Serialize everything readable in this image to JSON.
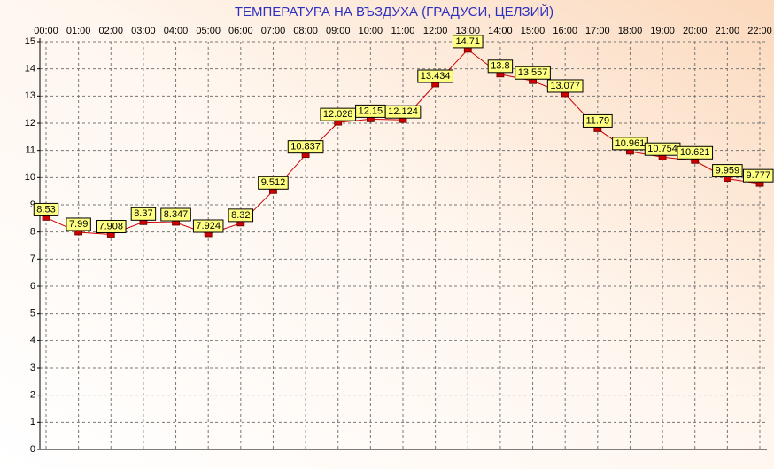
{
  "chart_data": {
    "type": "line",
    "title": "ТЕМПЕРАТУРА НА ВЪЗДУХА  (ГРАДУСИ, ЦЕЛЗИЙ)",
    "categories": [
      "00:00",
      "01:00",
      "02:00",
      "03:00",
      "04:00",
      "05:00",
      "06:00",
      "07:00",
      "08:00",
      "09:00",
      "10:00",
      "11:00",
      "12:00",
      "13:00",
      "14:00",
      "15:00",
      "16:00",
      "17:00",
      "18:00",
      "19:00",
      "20:00",
      "21:00",
      "22:00"
    ],
    "values": [
      8.53,
      7.99,
      7.908,
      8.37,
      8.347,
      7.924,
      8.32,
      9.512,
      10.837,
      12.028,
      12.15,
      12.124,
      13.434,
      14.71,
      13.8,
      13.557,
      13.077,
      11.79,
      10.961,
      10.754,
      10.621,
      9.959,
      9.777
    ],
    "color": "#cc0000",
    "ylim": [
      0,
      15
    ],
    "yticks": [
      0,
      1,
      2,
      3,
      4,
      5,
      6,
      7,
      8,
      9,
      10,
      11,
      12,
      13,
      14,
      15
    ],
    "grid": true
  }
}
